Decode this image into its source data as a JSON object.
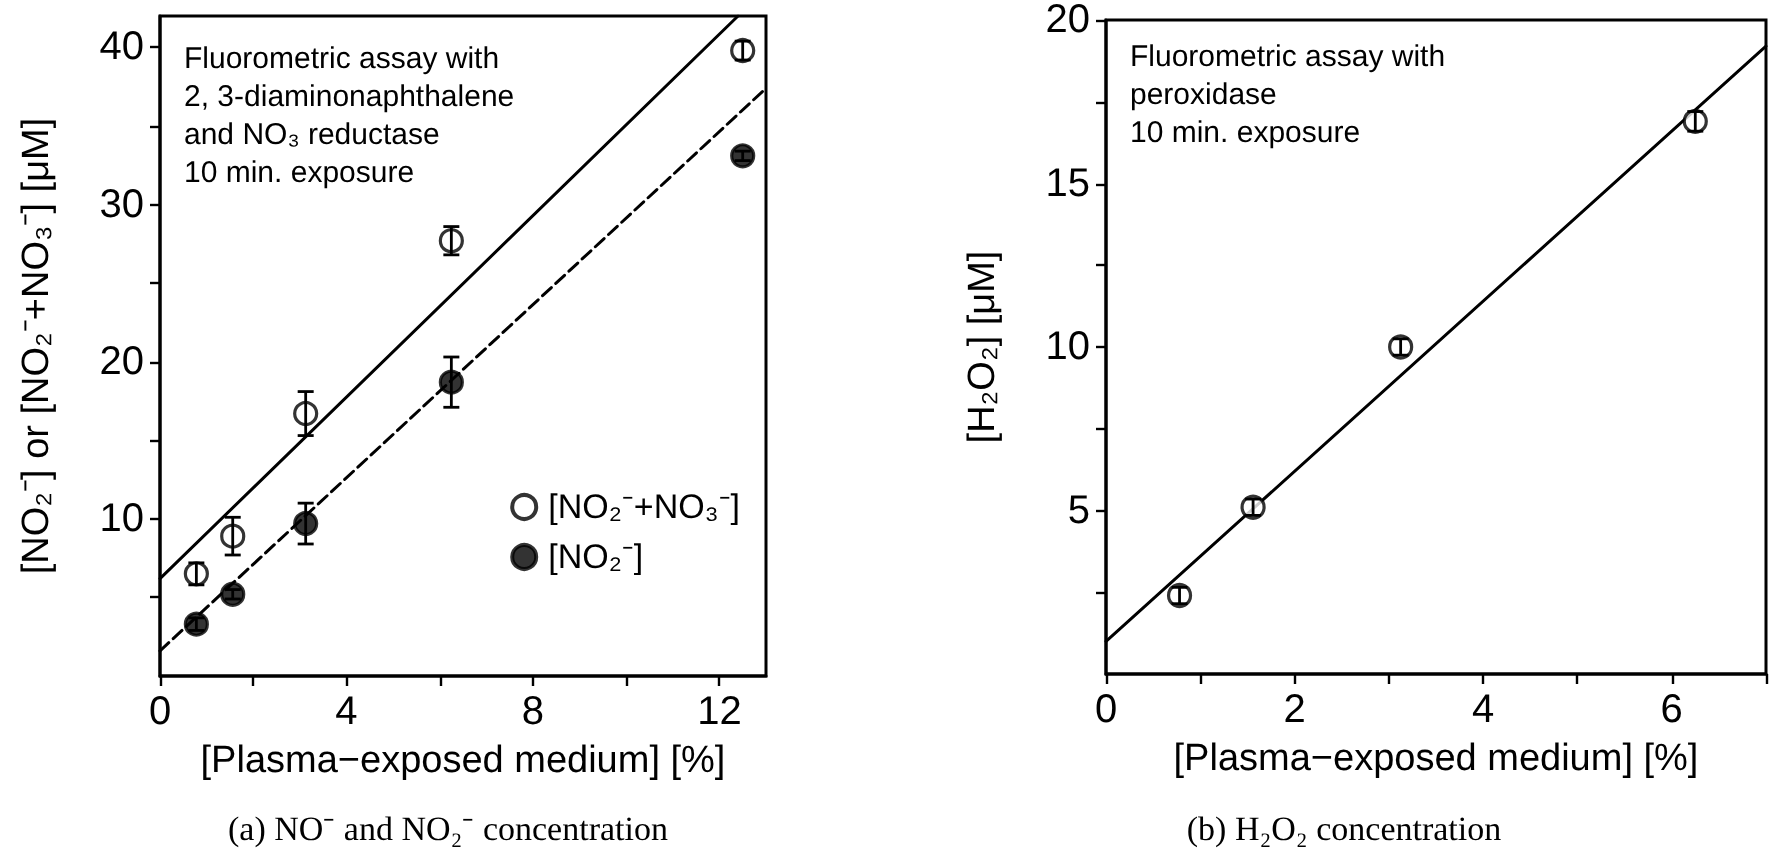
{
  "chart_data": [
    {
      "type": "scatter",
      "title": "(a) NO⁻ and NO₂⁻ concentration",
      "xlabel": "[Plasma−exposed medium] [%]",
      "ylabel": "[NO₂⁻] or [NO₂⁻+NO₃⁻] [μM]",
      "annotations": [
        "Fluorometric assay with\n2, 3-diaminonaphthalene\nand NO₃ reductase\n10 min. exposure"
      ],
      "xlim": [
        0,
        13
      ],
      "xticks": [
        0,
        {
          "value": 2,
          "label": null
        },
        4,
        {
          "value": 6,
          "label": null
        },
        8,
        {
          "value": 10,
          "label": null
        },
        12
      ],
      "ylim": [
        0,
        42
      ],
      "yticks": [
        {
          "value": 5,
          "label": null
        },
        10,
        {
          "value": 15,
          "label": null
        },
        20,
        {
          "value": 25,
          "label": null
        },
        30,
        {
          "value": 35,
          "label": null
        },
        40
      ],
      "legend": "right",
      "series": [
        {
          "name": "[NO₂⁻+NO₃⁻]",
          "marker": "circle",
          "color": "#000000",
          "x": [
            0.78,
            1.56,
            3.125,
            6.25,
            12.5
          ],
          "values": [
            6.5,
            8.9,
            16.7,
            27.7,
            39.8
          ],
          "errors": [
            0.7,
            1.2,
            1.4,
            0.9,
            0.6
          ]
        },
        {
          "name": "[NO₂⁻]",
          "marker": "circle",
          "color": "#000000",
          "x": [
            0.78,
            1.56,
            3.125,
            6.25,
            12.5
          ],
          "values": [
            3.3,
            5.2,
            9.7,
            18.7,
            33.1
          ],
          "errors": [
            0.4,
            0.3,
            1.3,
            1.6,
            0.3
          ]
        },
        {
          "type": "line",
          "color": "#000000",
          "line_style": "solid",
          "x": [
            0,
            12.4
          ],
          "values": [
            6.2,
            42
          ]
        },
        {
          "type": "line",
          "color": "#000000",
          "line_style": "dashed",
          "x": [
            0,
            13
          ],
          "values": [
            1.6,
            37.4
          ]
        }
      ]
    },
    {
      "type": "scatter",
      "title": "(b) H₂O₂ concentration",
      "xlabel": "[Plasma−exposed medium] [%]",
      "ylabel": "[H₂O₂] [μM]",
      "annotations": [
        "Fluorometric assay with\nperoxidase\n10 min. exposure"
      ],
      "xlim": [
        0,
        7
      ],
      "xticks": [
        0,
        {
          "value": 1,
          "label": null
        },
        2,
        {
          "value": 3,
          "label": null
        },
        4,
        {
          "value": 5,
          "label": null
        },
        6,
        {
          "value": 7,
          "label": null
        }
      ],
      "ylim": [
        0,
        20
      ],
      "yticks": [
        {
          "value": 2.5,
          "label": null
        },
        5,
        {
          "value": 7.5,
          "label": null
        },
        10,
        {
          "value": 12.5,
          "label": null
        },
        15,
        {
          "value": 17.5,
          "label": null
        },
        20
      ],
      "series": [
        {
          "marker": "circle",
          "color": "#000000",
          "x": [
            0.78,
            1.56,
            3.125,
            6.25
          ],
          "values": [
            2.4,
            5.1,
            10.0,
            16.9
          ],
          "errors": [
            0.25,
            0.25,
            0.25,
            0.3
          ]
        },
        {
          "type": "line",
          "color": "#000000",
          "line_style": "solid",
          "x": [
            0,
            7
          ],
          "values": [
            1.0,
            19.2
          ]
        }
      ]
    }
  ]
}
